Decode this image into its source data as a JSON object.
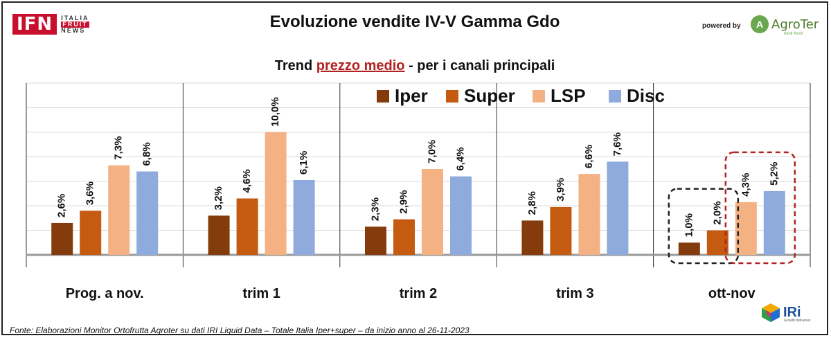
{
  "header": {
    "ifn_logo": {
      "letters": "IFN",
      "word1": "ITALIA",
      "word2": "FRUIT",
      "word3": "NEWS"
    },
    "title": "Evoluzione vendite IV-V Gamma Gdo",
    "powered_by": "powered by",
    "agroter": {
      "name": "AgroTer",
      "tagline": "think fresh"
    }
  },
  "subtitle": {
    "prefix": "Trend ",
    "highlight": "prezzo medio",
    "suffix": " - per i canali principali"
  },
  "footer": {
    "source": "Fonte: Elaborazioni Monitor Ortofrutta Agroter su dati IRI Liquid Data – Totale Italia Iper+super –  da inizio anno al 26-11-2023",
    "iri_logo": "IRi",
    "iri_tagline": "Growth delivered."
  },
  "colors": {
    "Iper": "#843c0c",
    "Super": "#c55a11",
    "LSP": "#f4b183",
    "Disc": "#8faadc",
    "highlight_black": "#222222",
    "highlight_red": "#b22222"
  },
  "chart_data": {
    "type": "bar",
    "title": "Trend prezzo medio - per i canali principali",
    "categories": [
      "Prog. a nov.",
      "trim 1",
      "trim 2",
      "trim 3",
      "ott-nov"
    ],
    "series": [
      {
        "name": "Iper",
        "values": [
          2.6,
          3.2,
          2.3,
          2.8,
          1.0
        ],
        "labels": [
          "2,6%",
          "3,2%",
          "2,3%",
          "2,8%",
          "1,0%"
        ]
      },
      {
        "name": "Super",
        "values": [
          3.6,
          4.6,
          2.9,
          3.9,
          2.0
        ],
        "labels": [
          "3,6%",
          "4,6%",
          "2,9%",
          "3,9%",
          "2,0%"
        ]
      },
      {
        "name": "LSP",
        "values": [
          7.3,
          10.0,
          7.0,
          6.6,
          4.3
        ],
        "labels": [
          "7,3%",
          "10,0%",
          "7,0%",
          "6,6%",
          "4,3%"
        ]
      },
      {
        "name": "Disc",
        "values": [
          6.8,
          6.1,
          6.4,
          7.6,
          5.2
        ],
        "labels": [
          "6,8%",
          "6,1%",
          "6,4%",
          "7,6%",
          "5,2%"
        ]
      }
    ],
    "ylim": [
      0,
      14
    ],
    "grid": true,
    "legend": "top-right",
    "xlabel": "",
    "ylabel": ""
  }
}
